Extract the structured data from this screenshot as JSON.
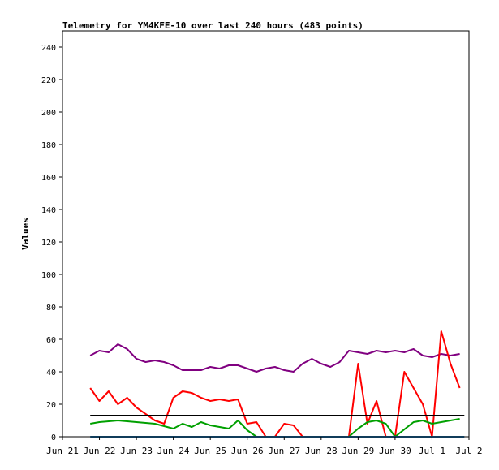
{
  "chart_data": {
    "type": "line",
    "title": "Telemetry for YM4KFE-10 over last 240 hours (483 points)",
    "ylabel": "Values",
    "xlabel": "",
    "ylim": [
      0,
      250
    ],
    "xlim": [
      "2023-06-21 00:00",
      "2023-07-02 00:00"
    ],
    "yticks": [
      0,
      20,
      40,
      60,
      80,
      100,
      120,
      140,
      160,
      180,
      200,
      220,
      240
    ],
    "xticks": [
      "Jun 21",
      "Jun 22",
      "Jun 23",
      "Jun 24",
      "Jun 25",
      "Jun 26",
      "Jun 27",
      "Jun 28",
      "Jun 29",
      "Jun 30",
      "Jul 1",
      "Jul 2"
    ],
    "grid": false,
    "legend": "none",
    "series": [
      {
        "color": "#800080",
        "points": [
          [
            "2023-06-21 18:00",
            50
          ],
          [
            "2023-06-22 00:00",
            53
          ],
          [
            "2023-06-22 06:00",
            52
          ],
          [
            "2023-06-22 12:00",
            57
          ],
          [
            "2023-06-22 18:00",
            54
          ],
          [
            "2023-06-23 00:00",
            48
          ],
          [
            "2023-06-23 06:00",
            46
          ],
          [
            "2023-06-23 12:00",
            47
          ],
          [
            "2023-06-23 18:00",
            46
          ],
          [
            "2023-06-24 00:00",
            44
          ],
          [
            "2023-06-24 06:00",
            41
          ],
          [
            "2023-06-24 12:00",
            41
          ],
          [
            "2023-06-24 18:00",
            41
          ],
          [
            "2023-06-25 00:00",
            43
          ],
          [
            "2023-06-25 06:00",
            42
          ],
          [
            "2023-06-25 12:00",
            44
          ],
          [
            "2023-06-25 18:00",
            44
          ],
          [
            "2023-06-26 00:00",
            42
          ],
          [
            "2023-06-26 06:00",
            40
          ],
          [
            "2023-06-26 12:00",
            42
          ],
          [
            "2023-06-26 18:00",
            43
          ],
          [
            "2023-06-27 00:00",
            41
          ],
          [
            "2023-06-27 06:00",
            40
          ],
          [
            "2023-06-27 12:00",
            45
          ],
          [
            "2023-06-27 18:00",
            48
          ],
          [
            "2023-06-28 00:00",
            45
          ],
          [
            "2023-06-28 06:00",
            43
          ],
          [
            "2023-06-28 12:00",
            46
          ],
          [
            "2023-06-28 18:00",
            53
          ],
          [
            "2023-06-29 00:00",
            52
          ],
          [
            "2023-06-29 06:00",
            51
          ],
          [
            "2023-06-29 12:00",
            53
          ],
          [
            "2023-06-29 18:00",
            52
          ],
          [
            "2023-06-30 00:00",
            53
          ],
          [
            "2023-06-30 06:00",
            52
          ],
          [
            "2023-06-30 12:00",
            54
          ],
          [
            "2023-06-30 18:00",
            50
          ],
          [
            "2023-07-01 00:00",
            49
          ],
          [
            "2023-07-01 06:00",
            51
          ],
          [
            "2023-07-01 12:00",
            50
          ],
          [
            "2023-07-01 18:00",
            51
          ]
        ]
      },
      {
        "color": "#ff0000",
        "points": [
          [
            "2023-06-21 18:00",
            30
          ],
          [
            "2023-06-22 00:00",
            22
          ],
          [
            "2023-06-22 06:00",
            28
          ],
          [
            "2023-06-22 12:00",
            20
          ],
          [
            "2023-06-22 18:00",
            24
          ],
          [
            "2023-06-23 00:00",
            18
          ],
          [
            "2023-06-23 06:00",
            14
          ],
          [
            "2023-06-23 12:00",
            10
          ],
          [
            "2023-06-23 18:00",
            8
          ],
          [
            "2023-06-24 00:00",
            24
          ],
          [
            "2023-06-24 06:00",
            28
          ],
          [
            "2023-06-24 12:00",
            27
          ],
          [
            "2023-06-24 18:00",
            24
          ],
          [
            "2023-06-25 00:00",
            22
          ],
          [
            "2023-06-25 06:00",
            23
          ],
          [
            "2023-06-25 12:00",
            22
          ],
          [
            "2023-06-25 18:00",
            23
          ],
          [
            "2023-06-26 00:00",
            8
          ],
          [
            "2023-06-26 06:00",
            9
          ],
          [
            "2023-06-26 12:00",
            0
          ],
          [
            "2023-06-26 18:00",
            0
          ],
          [
            "2023-06-27 00:00",
            8
          ],
          [
            "2023-06-27 06:00",
            7
          ],
          [
            "2023-06-27 12:00",
            0
          ],
          [
            "2023-06-28 00:00",
            0
          ],
          [
            "2023-06-28 18:00",
            0
          ],
          [
            "2023-06-29 00:00",
            45
          ],
          [
            "2023-06-29 06:00",
            8
          ],
          [
            "2023-06-29 12:00",
            22
          ],
          [
            "2023-06-29 18:00",
            0
          ],
          [
            "2023-06-30 00:00",
            0
          ],
          [
            "2023-06-30 06:00",
            40
          ],
          [
            "2023-06-30 12:00",
            30
          ],
          [
            "2023-06-30 18:00",
            20
          ],
          [
            "2023-07-01 00:00",
            0
          ],
          [
            "2023-07-01 06:00",
            65
          ],
          [
            "2023-07-01 12:00",
            45
          ],
          [
            "2023-07-01 18:00",
            30
          ]
        ]
      },
      {
        "color": "#00a000",
        "points": [
          [
            "2023-06-21 18:00",
            8
          ],
          [
            "2023-06-22 00:00",
            9
          ],
          [
            "2023-06-22 12:00",
            10
          ],
          [
            "2023-06-23 00:00",
            9
          ],
          [
            "2023-06-23 12:00",
            8
          ],
          [
            "2023-06-24 00:00",
            5
          ],
          [
            "2023-06-24 06:00",
            8
          ],
          [
            "2023-06-24 12:00",
            6
          ],
          [
            "2023-06-24 18:00",
            9
          ],
          [
            "2023-06-25 00:00",
            7
          ],
          [
            "2023-06-25 12:00",
            5
          ],
          [
            "2023-06-25 18:00",
            10
          ],
          [
            "2023-06-26 00:00",
            4
          ],
          [
            "2023-06-26 06:00",
            0
          ],
          [
            "2023-06-28 18:00",
            0
          ],
          [
            "2023-06-29 00:00",
            5
          ],
          [
            "2023-06-29 06:00",
            9
          ],
          [
            "2023-06-29 12:00",
            10
          ],
          [
            "2023-06-29 18:00",
            8
          ],
          [
            "2023-06-30 00:00",
            0
          ],
          [
            "2023-06-30 12:00",
            9
          ],
          [
            "2023-06-30 18:00",
            10
          ],
          [
            "2023-07-01 00:00",
            8
          ],
          [
            "2023-07-01 06:00",
            9
          ],
          [
            "2023-07-01 12:00",
            10
          ],
          [
            "2023-07-01 18:00",
            11
          ]
        ]
      },
      {
        "color": "#000000",
        "points": [
          [
            "2023-06-21 18:00",
            13
          ],
          [
            "2023-07-01 21:00",
            13
          ]
        ]
      },
      {
        "color": "#1f77b4",
        "points": [
          [
            "2023-06-21 18:00",
            0
          ],
          [
            "2023-07-01 21:00",
            0
          ]
        ]
      }
    ]
  }
}
